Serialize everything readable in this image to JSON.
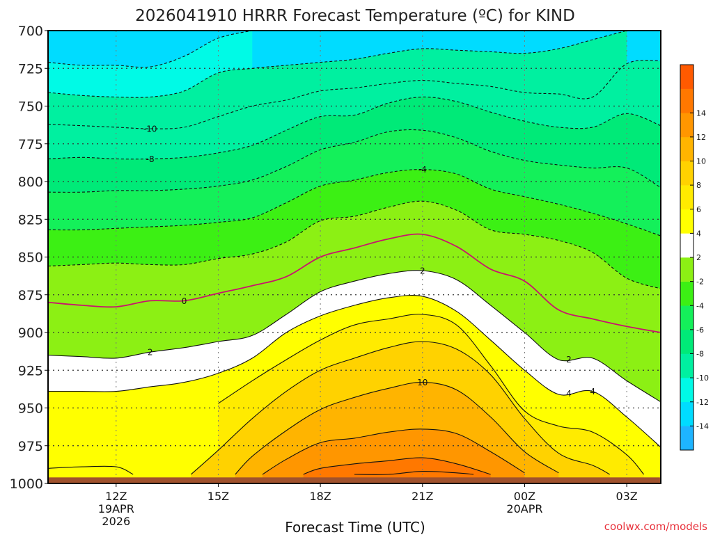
{
  "chart_data": {
    "type": "heatmap",
    "title": "2026041910 HRRR Forecast Temperature (ºC) for KIND",
    "xlabel": "Forecast Time (UTC)",
    "ylabel": "",
    "credit": "coolwx.com/models",
    "x_ticks": [
      {
        "label": "12Z",
        "sub": [
          "19APR",
          "2026"
        ],
        "hour": 12
      },
      {
        "label": "15Z",
        "sub": [],
        "hour": 15
      },
      {
        "label": "18Z",
        "sub": [],
        "hour": 18
      },
      {
        "label": "21Z",
        "sub": [],
        "hour": 21
      },
      {
        "label": "00Z",
        "sub": [
          "20APR"
        ],
        "hour": 24
      },
      {
        "label": "03Z",
        "sub": [],
        "hour": 27
      }
    ],
    "xlim_hours": [
      10,
      28
    ],
    "y_ticks": [
      700,
      725,
      750,
      775,
      800,
      825,
      850,
      875,
      900,
      925,
      950,
      975,
      1000
    ],
    "ylim_hpa": [
      700,
      1000
    ],
    "grid": true,
    "surface_pressure_hpa": 996,
    "colorbar": {
      "levels": [
        -16,
        -14,
        -12,
        -10,
        -8,
        -6,
        -4,
        -2,
        2,
        4,
        6,
        8,
        10,
        12,
        14,
        16
      ],
      "tick_labels": [
        "-14",
        "-12",
        "-10",
        "-8",
        "-6",
        "-4",
        "-2",
        "2",
        "4",
        "6",
        "8",
        "10",
        "12",
        "14"
      ],
      "colors": [
        "#1eb4ff",
        "#00dcff",
        "#00fae6",
        "#00f0a0",
        "#00ea78",
        "#14f05a",
        "#3cf014",
        "#8cf014",
        "#ffffff",
        "#ffff00",
        "#ffeb00",
        "#ffd200",
        "#ffb400",
        "#ff9600",
        "#ff7800",
        "#ff5a00"
      ]
    },
    "contours": [
      {
        "value": -12,
        "label": "",
        "style": "dashed",
        "points": [
          [
            10,
            721
          ],
          [
            11,
            723
          ],
          [
            12,
            723
          ],
          [
            13,
            724
          ],
          [
            14,
            717
          ],
          [
            15,
            705
          ],
          [
            16,
            700
          ],
          [
            16,
            700
          ]
        ]
      },
      {
        "value": -10,
        "label": "",
        "style": "dashed",
        "points": [
          [
            10,
            741
          ],
          [
            11,
            743
          ],
          [
            12,
            744
          ],
          [
            13,
            744
          ],
          [
            14,
            740
          ],
          [
            15,
            728
          ],
          [
            16,
            725
          ],
          [
            17,
            723
          ],
          [
            18,
            721
          ],
          [
            19,
            719
          ],
          [
            20,
            715
          ],
          [
            21,
            712
          ],
          [
            22,
            713
          ],
          [
            23,
            714
          ],
          [
            24,
            715
          ],
          [
            25,
            712
          ],
          [
            26,
            706
          ],
          [
            27,
            700
          ]
        ]
      },
      {
        "value": -10,
        "label": "-10",
        "style": "dashed",
        "points": [
          [
            10,
            762
          ],
          [
            11,
            763
          ],
          [
            12,
            764
          ],
          [
            13,
            765
          ],
          [
            14,
            764
          ],
          [
            15,
            757
          ],
          [
            16,
            750
          ],
          [
            17,
            746
          ],
          [
            18,
            740
          ],
          [
            19,
            738
          ],
          [
            20,
            735
          ],
          [
            21,
            733
          ],
          [
            22,
            735
          ],
          [
            23,
            737
          ],
          [
            24,
            741
          ],
          [
            25,
            742
          ],
          [
            26,
            744
          ],
          [
            27,
            722
          ],
          [
            28,
            720
          ]
        ]
      },
      {
        "value": -8,
        "label": "-8",
        "style": "dashed",
        "points": [
          [
            10,
            785
          ],
          [
            11,
            784
          ],
          [
            12,
            785
          ],
          [
            13,
            785
          ],
          [
            14,
            784
          ],
          [
            15,
            781
          ],
          [
            16,
            776
          ],
          [
            17,
            766
          ],
          [
            18,
            757
          ],
          [
            19,
            756
          ],
          [
            20,
            748
          ],
          [
            21,
            744
          ],
          [
            22,
            747
          ],
          [
            23,
            754
          ],
          [
            24,
            760
          ],
          [
            25,
            764
          ],
          [
            26,
            764
          ],
          [
            27,
            755
          ],
          [
            28,
            763
          ]
        ]
      },
      {
        "value": -6,
        "label": "",
        "style": "dashed",
        "points": [
          [
            10,
            807
          ],
          [
            11,
            807
          ],
          [
            12,
            806
          ],
          [
            13,
            806
          ],
          [
            14,
            805
          ],
          [
            15,
            803
          ],
          [
            16,
            799
          ],
          [
            17,
            790
          ],
          [
            18,
            779
          ],
          [
            19,
            774
          ],
          [
            20,
            767
          ],
          [
            21,
            766
          ],
          [
            22,
            771
          ],
          [
            23,
            780
          ],
          [
            24,
            786
          ],
          [
            25,
            789
          ],
          [
            26,
            791
          ],
          [
            27,
            791
          ],
          [
            28,
            804
          ]
        ]
      },
      {
        "value": -4,
        "label": "-4",
        "style": "dashed",
        "points": [
          [
            10,
            832
          ],
          [
            11,
            832
          ],
          [
            12,
            831
          ],
          [
            13,
            830
          ],
          [
            14,
            829
          ],
          [
            15,
            827
          ],
          [
            16,
            824
          ],
          [
            17,
            814
          ],
          [
            18,
            803
          ],
          [
            19,
            799
          ],
          [
            20,
            794
          ],
          [
            21,
            792
          ],
          [
            22,
            795
          ],
          [
            23,
            805
          ],
          [
            24,
            810
          ],
          [
            25,
            815
          ],
          [
            26,
            821
          ],
          [
            27,
            828
          ],
          [
            28,
            836
          ]
        ]
      },
      {
        "value": -2,
        "label": "",
        "style": "dashed",
        "points": [
          [
            10,
            856
          ],
          [
            11,
            855
          ],
          [
            12,
            854
          ],
          [
            13,
            855
          ],
          [
            14,
            855
          ],
          [
            15,
            851
          ],
          [
            16,
            848
          ],
          [
            17,
            840
          ],
          [
            18,
            826
          ],
          [
            19,
            823
          ],
          [
            20,
            817
          ],
          [
            21,
            813
          ],
          [
            22,
            819
          ],
          [
            23,
            832
          ],
          [
            24,
            835
          ],
          [
            25,
            839
          ],
          [
            26,
            847
          ],
          [
            27,
            864
          ],
          [
            28,
            871
          ]
        ]
      },
      {
        "value": 0,
        "label": "0",
        "style": "magenta",
        "points": [
          [
            10,
            880
          ],
          [
            11,
            882
          ],
          [
            12,
            883
          ],
          [
            13,
            879
          ],
          [
            14,
            879
          ],
          [
            15,
            874
          ],
          [
            16,
            869
          ],
          [
            17,
            863
          ],
          [
            18,
            850
          ],
          [
            19,
            844
          ],
          [
            20,
            838
          ],
          [
            21,
            835
          ],
          [
            22,
            843
          ],
          [
            23,
            858
          ],
          [
            24,
            866
          ],
          [
            25,
            885
          ],
          [
            26,
            891
          ],
          [
            27,
            896
          ],
          [
            28,
            900
          ]
        ]
      },
      {
        "value": 2,
        "label": "2",
        "style": "solid",
        "points": [
          [
            10,
            915
          ],
          [
            11,
            916
          ],
          [
            12,
            917
          ],
          [
            13,
            913
          ],
          [
            14,
            910
          ],
          [
            15,
            906
          ],
          [
            16,
            902
          ],
          [
            17,
            888
          ],
          [
            18,
            873
          ],
          [
            19,
            866
          ],
          [
            20,
            861
          ],
          [
            21,
            859
          ],
          [
            22,
            865
          ],
          [
            23,
            882
          ],
          [
            24,
            900
          ],
          [
            25,
            918
          ],
          [
            26,
            917
          ],
          [
            27,
            932
          ],
          [
            28,
            946
          ]
        ]
      },
      {
        "value": 4,
        "label": "4",
        "style": "solid",
        "points": [
          [
            10,
            939
          ],
          [
            11,
            939
          ],
          [
            12,
            939
          ],
          [
            13,
            936
          ],
          [
            14,
            933
          ],
          [
            15,
            927
          ],
          [
            16,
            917
          ],
          [
            17,
            900
          ],
          [
            18,
            889
          ],
          [
            19,
            882
          ],
          [
            20,
            877
          ],
          [
            21,
            876
          ],
          [
            22,
            886
          ],
          [
            23,
            905
          ],
          [
            24,
            925
          ],
          [
            25,
            941
          ],
          [
            26,
            939
          ],
          [
            27,
            956
          ],
          [
            28,
            976
          ]
        ]
      },
      {
        "value": 6,
        "label": "",
        "style": "solid",
        "points": [
          [
            15,
            947
          ],
          [
            16,
            932
          ],
          [
            17,
            918
          ],
          [
            18,
            905
          ],
          [
            19,
            895
          ],
          [
            20,
            891
          ],
          [
            21,
            888
          ],
          [
            22,
            895
          ],
          [
            23,
            922
          ],
          [
            24,
            952
          ],
          [
            25,
            962
          ],
          [
            26,
            966
          ],
          [
            27,
            981
          ],
          [
            27.5,
            994
          ]
        ]
      },
      {
        "value": 8,
        "label": "",
        "style": "solid",
        "points": [
          [
            14.2,
            994
          ],
          [
            15,
            978
          ],
          [
            16,
            957
          ],
          [
            17,
            939
          ],
          [
            18,
            925
          ],
          [
            19,
            917
          ],
          [
            20,
            910
          ],
          [
            21,
            906
          ],
          [
            22,
            911
          ],
          [
            23,
            928
          ],
          [
            24,
            957
          ],
          [
            25,
            980
          ],
          [
            26,
            988
          ],
          [
            26.5,
            994
          ]
        ]
      },
      {
        "value": 10,
        "label": "10",
        "style": "solid",
        "points": [
          [
            15.5,
            994
          ],
          [
            16,
            982
          ],
          [
            17,
            965
          ],
          [
            18,
            951
          ],
          [
            19,
            943
          ],
          [
            20,
            937
          ],
          [
            21,
            933
          ],
          [
            22,
            938
          ],
          [
            23,
            956
          ],
          [
            24,
            979
          ],
          [
            25,
            993
          ]
        ]
      },
      {
        "value": 12,
        "label": "",
        "style": "solid",
        "points": [
          [
            16.3,
            994
          ],
          [
            17,
            984
          ],
          [
            18,
            973
          ],
          [
            19,
            970
          ],
          [
            20,
            966
          ],
          [
            21,
            964
          ],
          [
            22,
            967
          ],
          [
            23,
            979
          ],
          [
            24,
            993
          ]
        ]
      },
      {
        "value": 14,
        "label": "",
        "style": "solid",
        "points": [
          [
            17.5,
            994
          ],
          [
            18,
            990
          ],
          [
            19,
            987
          ],
          [
            20,
            985
          ],
          [
            21,
            983
          ],
          [
            22,
            987
          ],
          [
            23,
            994
          ]
        ]
      },
      {
        "value": 16,
        "label": "",
        "style": "solid",
        "points": [
          [
            19,
            994
          ],
          [
            20,
            994
          ],
          [
            21,
            992
          ],
          [
            22,
            993
          ],
          [
            22.5,
            994
          ]
        ]
      },
      {
        "value": 4,
        "label": "",
        "style": "solid",
        "points": [
          [
            10,
            990
          ],
          [
            11,
            989
          ],
          [
            12,
            989
          ],
          [
            12.5,
            994
          ]
        ]
      }
    ]
  }
}
